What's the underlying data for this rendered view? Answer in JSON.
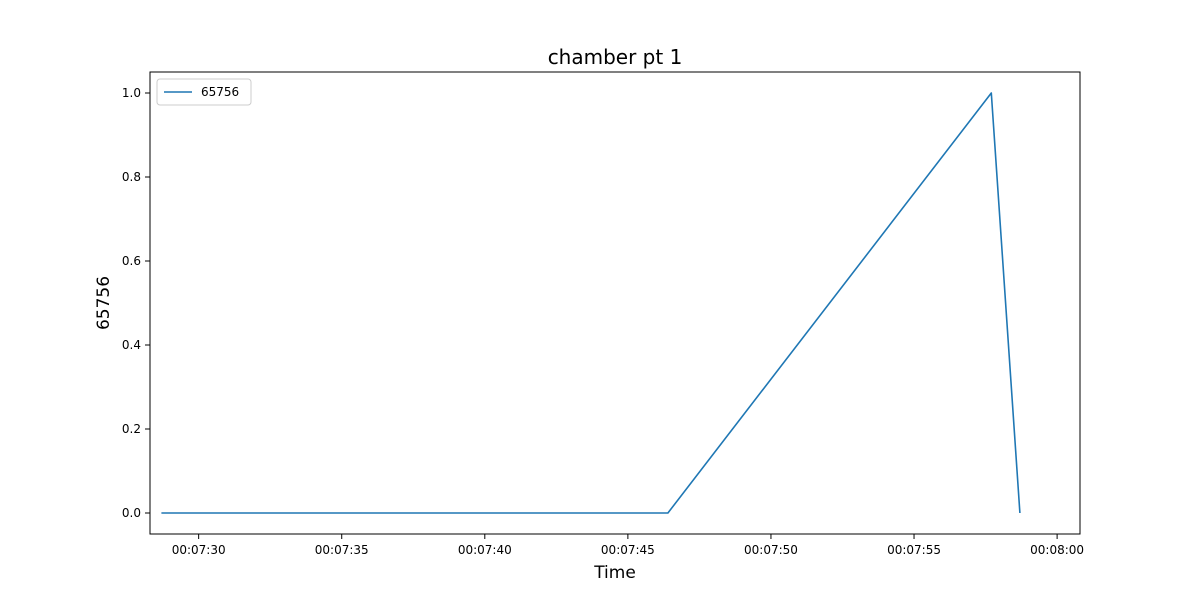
{
  "chart_data": {
    "type": "line",
    "title": "chamber pt 1",
    "xlabel": "Time",
    "ylabel": "65756",
    "x_ticks": [
      "00:07:30",
      "00:07:35",
      "00:07:40",
      "00:07:45",
      "00:07:50",
      "00:07:55",
      "00:08:00"
    ],
    "y_ticks": [
      "0.0",
      "0.2",
      "0.4",
      "0.6",
      "0.8",
      "1.0"
    ],
    "xlim": [
      "00:07:28.3",
      "00:08:00.8"
    ],
    "ylim": [
      -0.05,
      1.05
    ],
    "grid": false,
    "legend": {
      "placement": "top-left"
    },
    "series": [
      {
        "name": "65756",
        "color": "#1f77b4",
        "x": [
          "00:07:28.7",
          "00:07:46.4",
          "00:07:57.7",
          "00:07:58.7"
        ],
        "y": [
          0.0,
          0.0,
          1.0,
          0.0
        ]
      }
    ]
  }
}
